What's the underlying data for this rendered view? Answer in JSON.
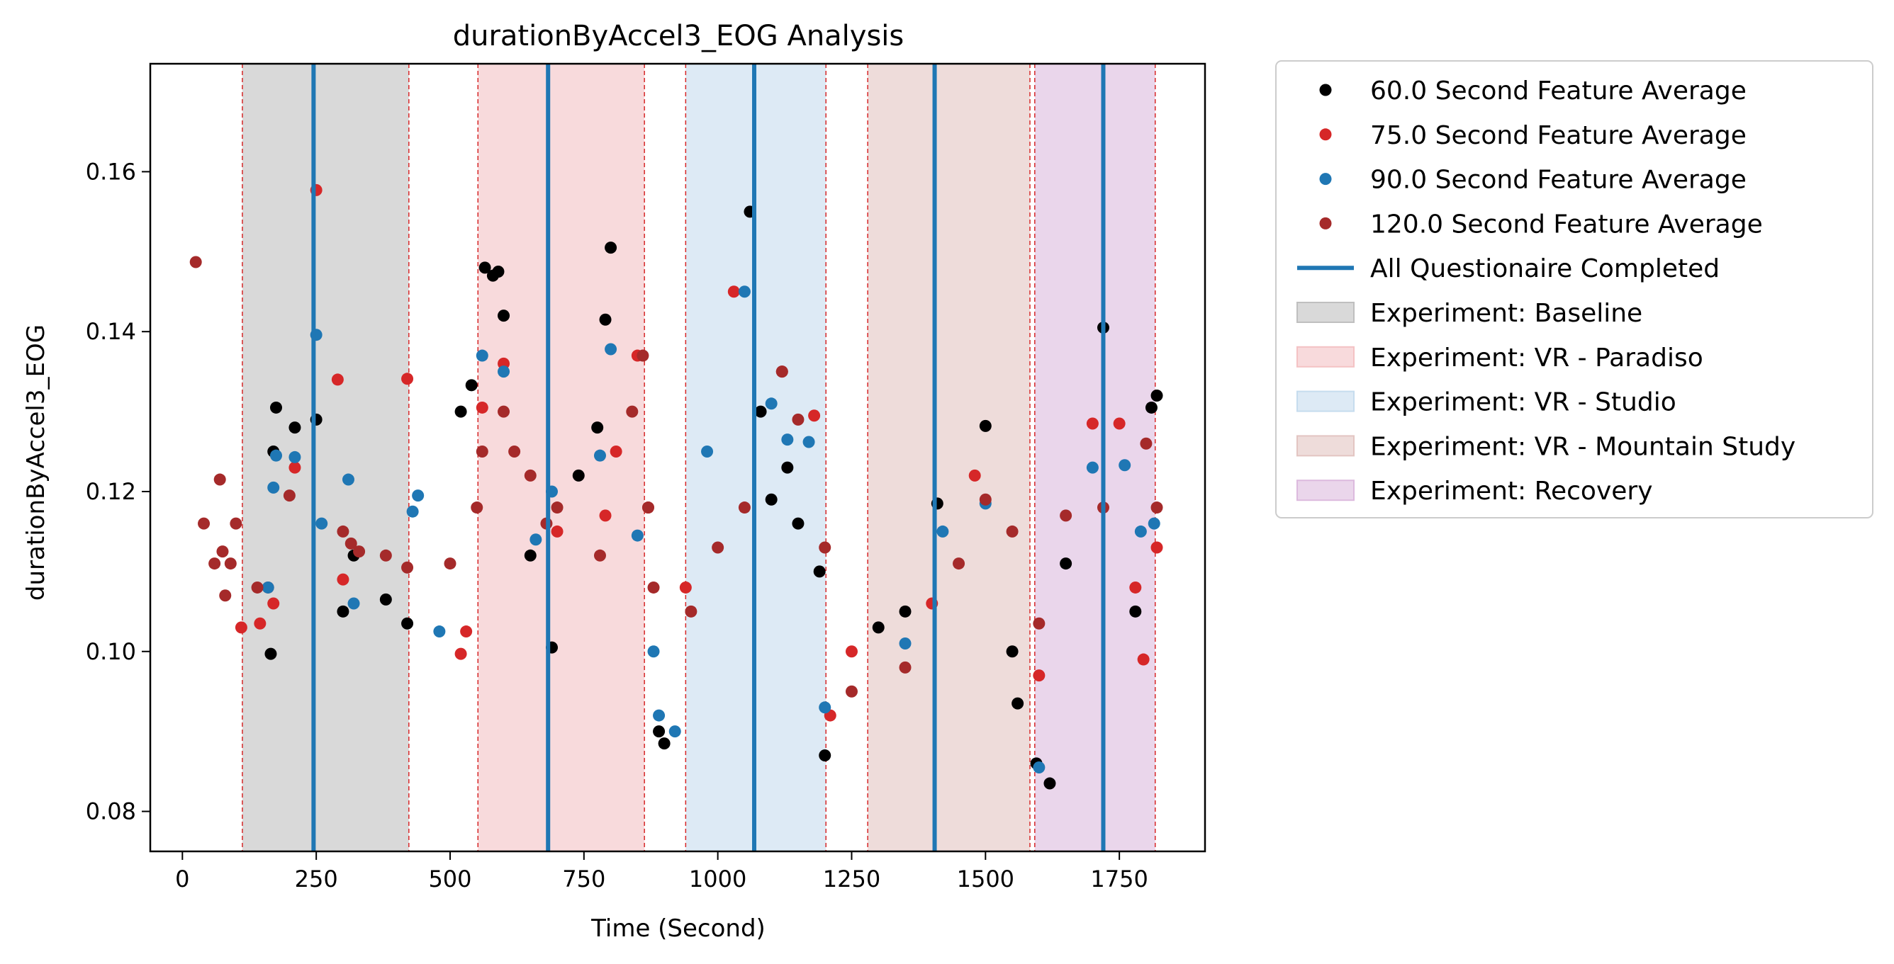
{
  "chart_data": {
    "type": "scatter",
    "title": "durationByAccel3_EOG Analysis",
    "xlabel": "Time (Second)",
    "ylabel": "durationByAccel3_EOG",
    "xlim": [
      -60,
      1910
    ],
    "ylim": [
      0.075,
      0.1735
    ],
    "xticks": [
      0,
      250,
      500,
      750,
      1000,
      1250,
      1500,
      1750
    ],
    "yticks": [
      0.08,
      0.1,
      0.12,
      0.14,
      0.16
    ],
    "ytick_labels": [
      "0.08",
      "0.10",
      "0.12",
      "0.14",
      "0.16"
    ],
    "grid": false,
    "legend_position": "outside-right",
    "series": [
      {
        "name": "60.0 Second Feature Average",
        "color": "#000000",
        "points": [
          [
            165,
            0.0997
          ],
          [
            170,
            0.125
          ],
          [
            175,
            0.1305
          ],
          [
            210,
            0.128
          ],
          [
            250,
            0.129
          ],
          [
            300,
            0.105
          ],
          [
            320,
            0.112
          ],
          [
            380,
            0.1065
          ],
          [
            420,
            0.1035
          ],
          [
            520,
            0.13
          ],
          [
            540,
            0.1333
          ],
          [
            565,
            0.148
          ],
          [
            580,
            0.147
          ],
          [
            590,
            0.1475
          ],
          [
            600,
            0.142
          ],
          [
            650,
            0.112
          ],
          [
            690,
            0.1005
          ],
          [
            740,
            0.122
          ],
          [
            775,
            0.128
          ],
          [
            790,
            0.1415
          ],
          [
            800,
            0.1505
          ],
          [
            890,
            0.09
          ],
          [
            900,
            0.0885
          ],
          [
            1060,
            0.155
          ],
          [
            1080,
            0.13
          ],
          [
            1100,
            0.119
          ],
          [
            1130,
            0.123
          ],
          [
            1150,
            0.116
          ],
          [
            1190,
            0.11
          ],
          [
            1200,
            0.087
          ],
          [
            1300,
            0.103
          ],
          [
            1350,
            0.105
          ],
          [
            1410,
            0.1185
          ],
          [
            1500,
            0.1282
          ],
          [
            1550,
            0.1
          ],
          [
            1560,
            0.0935
          ],
          [
            1595,
            0.086
          ],
          [
            1620,
            0.0835
          ],
          [
            1650,
            0.111
          ],
          [
            1720,
            0.1405
          ],
          [
            1780,
            0.105
          ],
          [
            1810,
            0.1305
          ],
          [
            1820,
            0.132
          ]
        ]
      },
      {
        "name": "75.0 Second Feature Average",
        "color": "#d62728",
        "points": [
          [
            110,
            0.103
          ],
          [
            145,
            0.1035
          ],
          [
            160,
            0.108
          ],
          [
            170,
            0.106
          ],
          [
            210,
            0.123
          ],
          [
            250,
            0.1577
          ],
          [
            290,
            0.134
          ],
          [
            300,
            0.109
          ],
          [
            420,
            0.1341
          ],
          [
            520,
            0.0997
          ],
          [
            530,
            0.1025
          ],
          [
            560,
            0.1305
          ],
          [
            600,
            0.136
          ],
          [
            700,
            0.115
          ],
          [
            790,
            0.117
          ],
          [
            810,
            0.125
          ],
          [
            850,
            0.137
          ],
          [
            870,
            0.118
          ],
          [
            940,
            0.108
          ],
          [
            1030,
            0.145
          ],
          [
            1120,
            0.135
          ],
          [
            1180,
            0.1295
          ],
          [
            1210,
            0.092
          ],
          [
            1250,
            0.1
          ],
          [
            1400,
            0.106
          ],
          [
            1480,
            0.122
          ],
          [
            1600,
            0.097
          ],
          [
            1700,
            0.1285
          ],
          [
            1750,
            0.1285
          ],
          [
            1780,
            0.108
          ],
          [
            1795,
            0.099
          ],
          [
            1820,
            0.113
          ]
        ]
      },
      {
        "name": "90.0 Second Feature Average",
        "color": "#1f77b4",
        "points": [
          [
            160,
            0.108
          ],
          [
            170,
            0.1205
          ],
          [
            175,
            0.1245
          ],
          [
            210,
            0.1243
          ],
          [
            250,
            0.1396
          ],
          [
            260,
            0.116
          ],
          [
            310,
            0.1215
          ],
          [
            320,
            0.106
          ],
          [
            430,
            0.1175
          ],
          [
            440,
            0.1195
          ],
          [
            480,
            0.1025
          ],
          [
            560,
            0.137
          ],
          [
            600,
            0.135
          ],
          [
            660,
            0.114
          ],
          [
            690,
            0.12
          ],
          [
            780,
            0.1245
          ],
          [
            800,
            0.1378
          ],
          [
            850,
            0.1145
          ],
          [
            880,
            0.1
          ],
          [
            890,
            0.092
          ],
          [
            920,
            0.09
          ],
          [
            980,
            0.125
          ],
          [
            1050,
            0.145
          ],
          [
            1100,
            0.131
          ],
          [
            1130,
            0.1265
          ],
          [
            1170,
            0.1262
          ],
          [
            1200,
            0.093
          ],
          [
            1350,
            0.101
          ],
          [
            1420,
            0.115
          ],
          [
            1500,
            0.1185
          ],
          [
            1600,
            0.0855
          ],
          [
            1700,
            0.123
          ],
          [
            1760,
            0.1233
          ],
          [
            1790,
            0.115
          ],
          [
            1815,
            0.116
          ]
        ]
      },
      {
        "name": "120.0 Second Feature Average",
        "color": "#a52a2a",
        "points": [
          [
            25,
            0.1487
          ],
          [
            40,
            0.116
          ],
          [
            60,
            0.111
          ],
          [
            70,
            0.1215
          ],
          [
            75,
            0.1125
          ],
          [
            80,
            0.107
          ],
          [
            90,
            0.111
          ],
          [
            100,
            0.116
          ],
          [
            140,
            0.108
          ],
          [
            200,
            0.1195
          ],
          [
            300,
            0.115
          ],
          [
            315,
            0.1135
          ],
          [
            330,
            0.1125
          ],
          [
            380,
            0.112
          ],
          [
            420,
            0.1105
          ],
          [
            500,
            0.111
          ],
          [
            550,
            0.118
          ],
          [
            560,
            0.125
          ],
          [
            600,
            0.13
          ],
          [
            620,
            0.125
          ],
          [
            650,
            0.122
          ],
          [
            680,
            0.116
          ],
          [
            700,
            0.118
          ],
          [
            780,
            0.112
          ],
          [
            840,
            0.13
          ],
          [
            860,
            0.137
          ],
          [
            870,
            0.118
          ],
          [
            880,
            0.108
          ],
          [
            950,
            0.105
          ],
          [
            1000,
            0.113
          ],
          [
            1050,
            0.118
          ],
          [
            1120,
            0.135
          ],
          [
            1150,
            0.129
          ],
          [
            1200,
            0.113
          ],
          [
            1250,
            0.095
          ],
          [
            1350,
            0.098
          ],
          [
            1450,
            0.111
          ],
          [
            1500,
            0.119
          ],
          [
            1550,
            0.115
          ],
          [
            1600,
            0.1035
          ],
          [
            1650,
            0.117
          ],
          [
            1720,
            0.118
          ],
          [
            1800,
            0.126
          ],
          [
            1820,
            0.118
          ]
        ]
      }
    ],
    "questionnaire_lines": {
      "name": "All Questionaire Completed",
      "color": "#1f77b4",
      "x": [
        245,
        683,
        1068,
        1405,
        1720
      ]
    },
    "phases": [
      {
        "name": "Experiment: Baseline",
        "color": "#bfbfbf",
        "x0": 112,
        "x1": 423
      },
      {
        "name": "Experiment: VR - Paradiso",
        "color": "#f4c2c4",
        "x0": 552,
        "x1": 863
      },
      {
        "name": "Experiment: VR - Studio",
        "color": "#c6dcee",
        "x0": 940,
        "x1": 1202
      },
      {
        "name": "Experiment: VR - Mountain Study",
        "color": "#e3c5c2",
        "x0": 1280,
        "x1": 1583
      },
      {
        "name": "Experiment: Recovery",
        "color": "#dcbade",
        "x0": 1592,
        "x1": 1817
      }
    ]
  }
}
